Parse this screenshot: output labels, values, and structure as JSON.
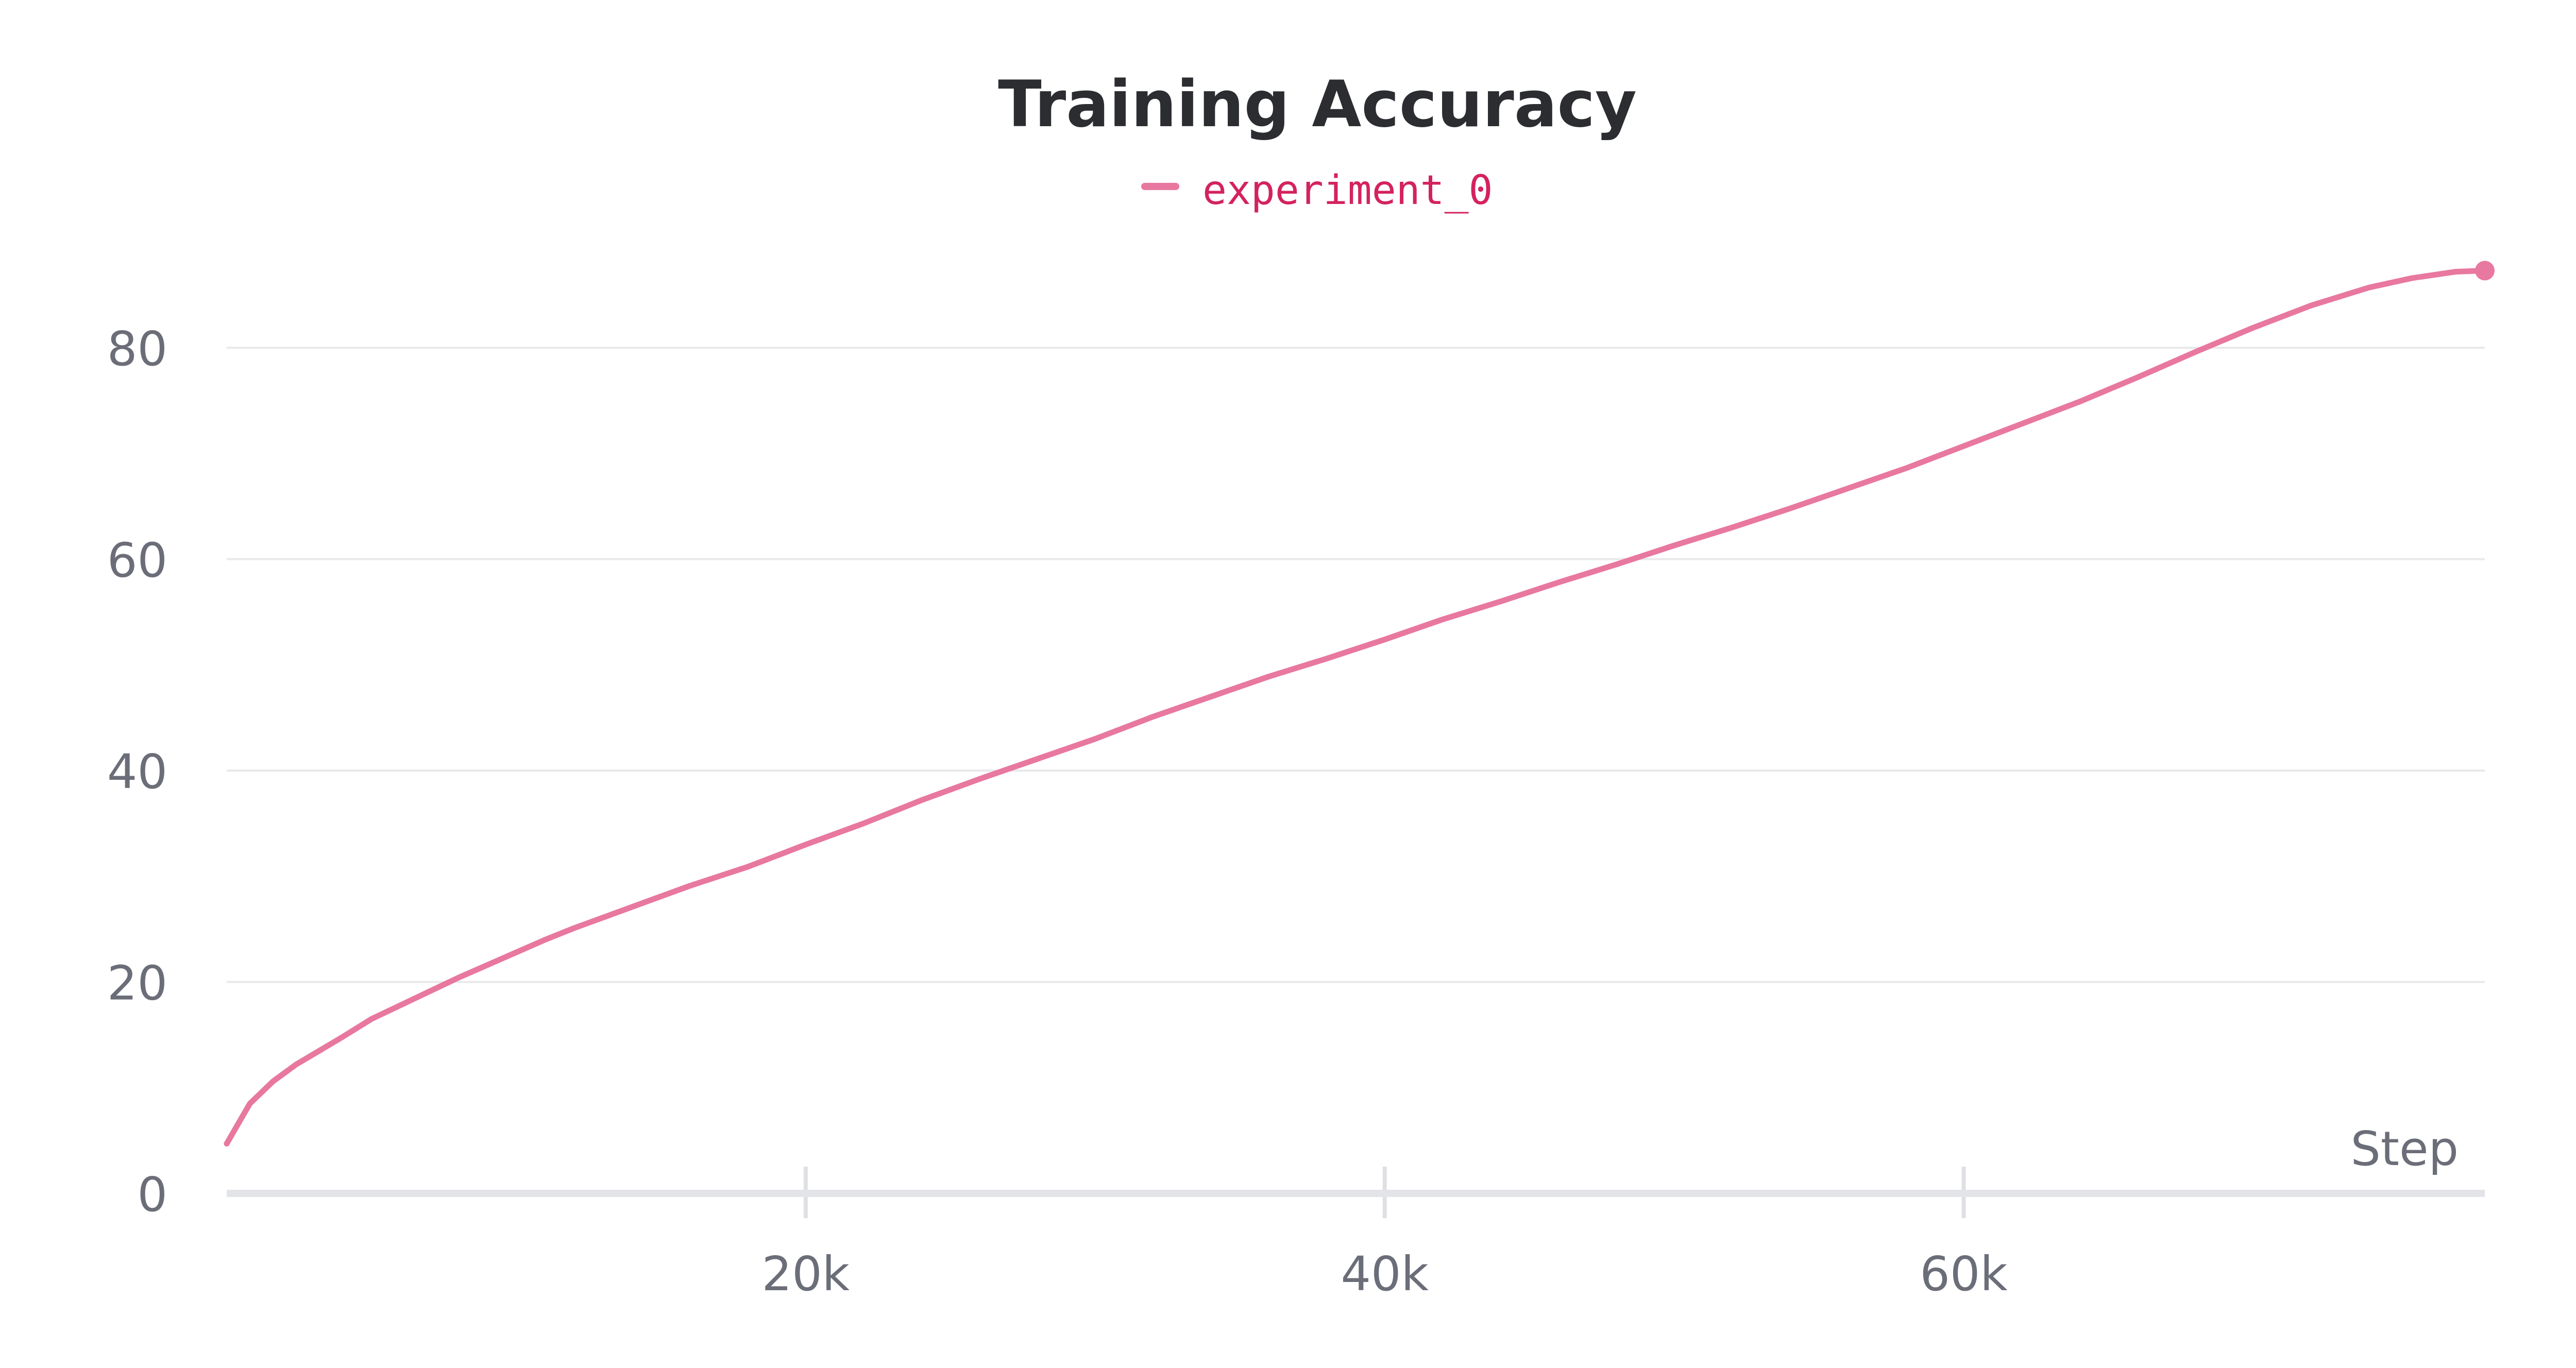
{
  "chart_data": {
    "type": "line",
    "title": "Training Accuracy",
    "xlabel": "Step",
    "ylabel": "",
    "xlim": [
      0,
      78000
    ],
    "ylim": [
      0,
      90
    ],
    "x_ticks": [
      {
        "value": 20000,
        "label": "20k"
      },
      {
        "value": 40000,
        "label": "40k"
      },
      {
        "value": 60000,
        "label": "60k"
      }
    ],
    "y_ticks": [
      {
        "value": 0,
        "label": "0"
      },
      {
        "value": 20,
        "label": "20"
      },
      {
        "value": 40,
        "label": "40"
      },
      {
        "value": 60,
        "label": "60"
      },
      {
        "value": 80,
        "label": "80"
      }
    ],
    "grid": true,
    "legend_position": "top-center",
    "series": [
      {
        "name": "experiment_0",
        "color": "#e8789f",
        "x": [
          0,
          800,
          1600,
          2400,
          3200,
          4000,
          5000,
          6000,
          7000,
          8000,
          9000,
          10000,
          11000,
          12000,
          13000,
          14000,
          15000,
          16000,
          17000,
          18000,
          20000,
          22000,
          24000,
          26000,
          28000,
          30000,
          32000,
          34000,
          36000,
          38000,
          40000,
          42000,
          44000,
          46000,
          48000,
          50000,
          52000,
          54000,
          56000,
          58000,
          60000,
          62000,
          64000,
          66000,
          68000,
          70000,
          72000,
          74000,
          75500,
          77000,
          78000
        ],
        "y": [
          4.7,
          8.5,
          10.6,
          12.2,
          13.5,
          14.8,
          16.5,
          17.8,
          19.1,
          20.4,
          21.6,
          22.8,
          24.0,
          25.1,
          26.1,
          27.1,
          28.1,
          29.1,
          30.0,
          30.9,
          33.0,
          35.0,
          37.2,
          39.2,
          41.1,
          43.0,
          45.1,
          47.0,
          48.9,
          50.6,
          52.4,
          54.3,
          56.0,
          57.8,
          59.5,
          61.3,
          63.0,
          64.8,
          66.7,
          68.6,
          70.7,
          72.8,
          74.9,
          77.2,
          79.6,
          81.9,
          84.0,
          85.7,
          86.6,
          87.2,
          87.3
        ]
      }
    ]
  }
}
